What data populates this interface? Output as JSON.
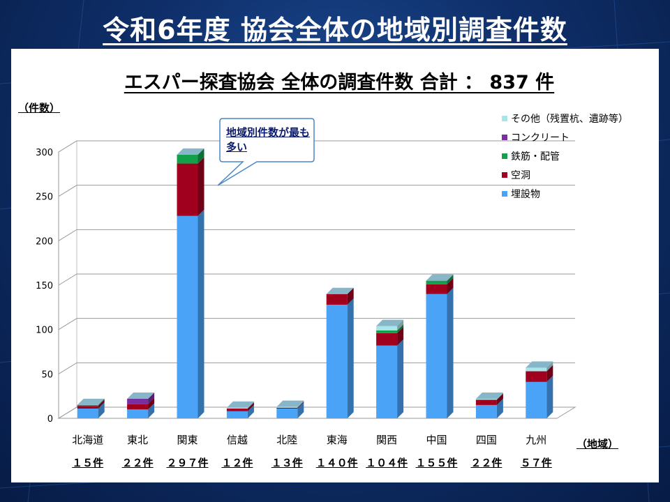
{
  "slide_title": "令和6年度 協会全体の地域別調査件数",
  "chart_data": {
    "type": "bar",
    "stacked": true,
    "three_d": true,
    "title": "エスパー探査協会 全体の調査件数 合計 ： 837 件",
    "ylabel": "（件数）",
    "xlabel": "（地域）",
    "ylim": [
      0,
      300
    ],
    "yticks": [
      0,
      50,
      100,
      150,
      200,
      250,
      300
    ],
    "grid": true,
    "legend_position": "top-right",
    "categories": [
      "北海道",
      "東北",
      "関東",
      "信越",
      "北陸",
      "東海",
      "関西",
      "中国",
      "四国",
      "九州"
    ],
    "totals_labels": [
      "１５件",
      "２２件",
      "２９７件",
      "１２件",
      "１３件",
      "１４０件",
      "１０４件",
      "１５５件",
      "２２件",
      "５７件"
    ],
    "series": [
      {
        "name": "埋設物",
        "color": "#4aa3f7",
        "values": [
          11,
          10,
          228,
          8,
          11,
          128,
          82,
          140,
          15,
          41
        ]
      },
      {
        "name": "空洞",
        "color": "#a0001e",
        "values": [
          3,
          6,
          59,
          3,
          1,
          12,
          14,
          11,
          6,
          12
        ]
      },
      {
        "name": "鉄筋・配管",
        "color": "#12a04a",
        "values": [
          1,
          0,
          10,
          0,
          0,
          0,
          3,
          4,
          0,
          0
        ]
      },
      {
        "name": "コンクリート",
        "color": "#7a2fa0",
        "values": [
          0,
          6,
          0,
          0,
          0,
          0,
          0,
          0,
          0,
          0
        ]
      },
      {
        "name": "その他（残置杭、遺跡等）",
        "color": "#a8e4ea",
        "values": [
          0,
          0,
          0,
          1,
          1,
          0,
          5,
          0,
          1,
          4
        ]
      }
    ],
    "annotation": "地域別件数が最も多い"
  }
}
